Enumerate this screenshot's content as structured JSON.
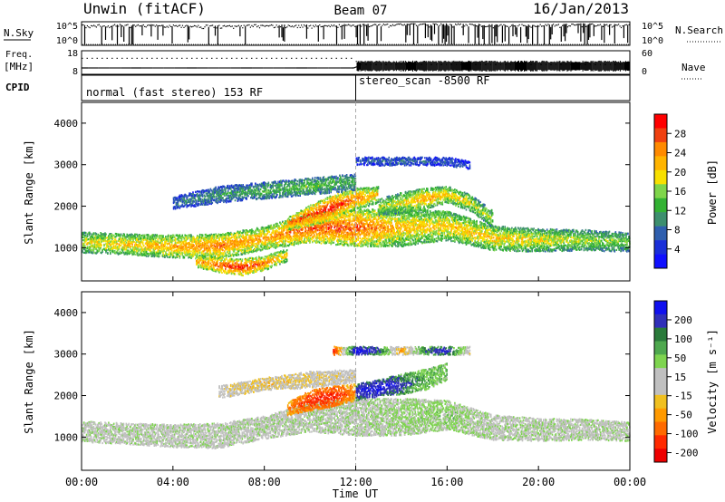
{
  "header": {
    "station": "Unwin (fitACF)",
    "beam": "Beam 07",
    "date": "16/Jan/2013"
  },
  "top_strip": {
    "left_label": "N.Sky",
    "left_ticks": [
      "10^5",
      "10^0"
    ],
    "right_ticks": [
      "10^5",
      "10^0"
    ],
    "right_label": "N.Search"
  },
  "freq_strip": {
    "left_label_1": "Freq.",
    "left_label_2": "[MHz]",
    "left_ticks": [
      "18",
      "8"
    ],
    "right_ticks": [
      "60",
      "0"
    ],
    "right_label": "Nave"
  },
  "cpid": {
    "label": "CPID",
    "mode_1": "normal (fast stereo) 153 RF",
    "mode_2": "stereo_scan -8500 RF",
    "mode_change_x": 12.0
  },
  "panels": {
    "ylabel": "Slant Range [km]",
    "xlabel": "Time UT"
  },
  "colorbars": {
    "power": {
      "title": "Power [dB]",
      "ticks": [
        "28",
        "24",
        "20",
        "16",
        "12",
        "8",
        "4"
      ],
      "colors": [
        "#ff0000",
        "#f04010",
        "#ff8a00",
        "#ffb400",
        "#f8e000",
        "#7fd54a",
        "#33b233",
        "#3d8f6e",
        "#2f5fae",
        "#1a2fd8",
        "#1010ff"
      ]
    },
    "velocity": {
      "title": "Velocity [m s⁻¹]",
      "ticks": [
        "200",
        "100",
        "50",
        "15",
        "-15",
        "-50",
        "-100",
        "-200"
      ],
      "colors": [
        "#1010ee",
        "#3030b8",
        "#2a7a3a",
        "#4ea84e",
        "#7ed44f",
        "#c0c0c0",
        "#c0c0c0",
        "#f0c020",
        "#ff9a00",
        "#ff6a00",
        "#ff2a00",
        "#ee0000"
      ]
    }
  },
  "chart_data": [
    {
      "type": "line",
      "title": "N.Sky / N.Search",
      "x": [
        0,
        2,
        4,
        6,
        8,
        10,
        12,
        14,
        16,
        18,
        20,
        22,
        24
      ],
      "series": [
        {
          "name": "N.Sky",
          "values": [
            20000,
            20000,
            15000,
            15000,
            20000,
            15000,
            20000,
            30000,
            30000,
            20000,
            20000,
            30000,
            20000
          ]
        },
        {
          "name": "N.Search",
          "values": [
            1,
            1,
            1,
            1,
            1,
            1,
            1,
            1,
            1,
            1,
            1,
            1,
            1
          ]
        }
      ],
      "ylim": [
        1,
        100000
      ],
      "log_y": true
    },
    {
      "type": "line",
      "title": "Freq / Nave",
      "x": [
        0,
        4,
        8,
        11.9,
        12.1,
        16,
        20,
        24
      ],
      "series": [
        {
          "name": "Freq",
          "values": [
            10.7,
            10.7,
            10.7,
            10.7,
            11.5,
            11.5,
            11.5,
            11.5
          ]
        },
        {
          "name": "Nave",
          "values": [
            42,
            42,
            42,
            42,
            26,
            26,
            26,
            26
          ]
        }
      ],
      "ylim": [
        8,
        18
      ]
    },
    {
      "type": "heatmap",
      "title": "Power",
      "xlabel": "Time UT",
      "ylabel": "Slant Range [km]",
      "xlim": [
        0,
        24
      ],
      "ylim": [
        200,
        4500
      ],
      "x_ticks": [
        "00:00",
        "04:00",
        "08:00",
        "12:00",
        "16:00",
        "20:00",
        "00:00"
      ],
      "y_ticks": [
        "1000",
        "2000",
        "3000",
        "4000"
      ],
      "zlabel": "Power [dB]",
      "zlim": [
        0,
        30
      ],
      "scatter_bands": [
        {
          "x": [
            0,
            2,
            4,
            6,
            8,
            10,
            12,
            14,
            16,
            18,
            20,
            22,
            24
          ],
          "center": [
            1150,
            1100,
            1050,
            1050,
            1250,
            1500,
            1500,
            1500,
            1550,
            1250,
            1200,
            1200,
            1150
          ],
          "width": [
            500,
            500,
            550,
            600,
            550,
            700,
            900,
            900,
            700,
            600,
            550,
            500,
            450
          ],
          "power": [
            18,
            20,
            22,
            24,
            22,
            26,
            26,
            20,
            20,
            20,
            18,
            16,
            14
          ]
        },
        {
          "x": [
            5,
            6,
            7,
            8,
            9
          ],
          "center": [
            700,
            600,
            550,
            650,
            850
          ],
          "width": [
            300,
            350,
            400,
            350,
            300
          ],
          "power": [
            22,
            26,
            28,
            24,
            20
          ]
        },
        {
          "x": [
            9,
            10,
            11,
            12,
            13
          ],
          "center": [
            1600,
            1800,
            2000,
            2200,
            2300
          ],
          "width": [
            300,
            500,
            600,
            500,
            400
          ],
          "power": [
            24,
            27,
            28,
            24,
            20
          ]
        },
        {
          "x": [
            13,
            14,
            15,
            16,
            17,
            18
          ],
          "center": [
            2000,
            2100,
            2200,
            2300,
            2100,
            1700
          ],
          "width": [
            400,
            500,
            500,
            400,
            400,
            400
          ],
          "power": [
            16,
            18,
            22,
            20,
            18,
            16
          ]
        },
        {
          "x": [
            4,
            6,
            8,
            10,
            12
          ],
          "center": [
            2100,
            2300,
            2400,
            2500,
            2600
          ],
          "width": [
            300,
            400,
            400,
            400,
            400
          ],
          "power": [
            8,
            10,
            12,
            14,
            12
          ]
        },
        {
          "x": [
            12,
            14,
            16,
            17
          ],
          "center": [
            3100,
            3100,
            3100,
            3000
          ],
          "width": [
            200,
            200,
            200,
            200
          ],
          "power": [
            6,
            8,
            6,
            6
          ]
        }
      ]
    },
    {
      "type": "heatmap",
      "title": "Velocity",
      "xlabel": "Time UT",
      "ylabel": "Slant Range [km]",
      "xlim": [
        0,
        24
      ],
      "ylim": [
        200,
        4500
      ],
      "x_ticks": [
        "00:00",
        "04:00",
        "08:00",
        "12:00",
        "16:00",
        "20:00",
        "00:00"
      ],
      "y_ticks": [
        "1000",
        "2000",
        "3000",
        "4000"
      ],
      "zlabel": "Velocity [m s⁻¹]",
      "zlim": [
        -200,
        200
      ],
      "scatter_bands": [
        {
          "x": [
            0,
            2,
            4,
            6,
            8,
            10,
            12,
            14,
            16,
            18,
            20,
            22,
            24
          ],
          "center": [
            1150,
            1100,
            1050,
            1050,
            1250,
            1500,
            1500,
            1500,
            1550,
            1250,
            1200,
            1200,
            1150
          ],
          "width": [
            500,
            500,
            550,
            600,
            550,
            700,
            900,
            900,
            700,
            600,
            550,
            500,
            450
          ],
          "velocity": [
            0,
            0,
            0,
            -5,
            0,
            0,
            0,
            20,
            30,
            0,
            0,
            0,
            0
          ]
        },
        {
          "x": [
            9,
            10,
            11,
            12
          ],
          "center": [
            1700,
            1900,
            2000,
            2100
          ],
          "width": [
            300,
            500,
            500,
            400
          ],
          "velocity": [
            -120,
            -180,
            -200,
            -100
          ]
        },
        {
          "x": [
            12,
            13,
            14,
            15,
            16
          ],
          "center": [
            2100,
            2200,
            2300,
            2400,
            2600
          ],
          "width": [
            400,
            400,
            500,
            500,
            400
          ],
          "velocity": [
            150,
            180,
            120,
            60,
            40
          ]
        },
        {
          "x": [
            6,
            8,
            10,
            12
          ],
          "center": [
            2100,
            2300,
            2400,
            2500
          ],
          "width": [
            300,
            300,
            400,
            300
          ],
          "velocity": [
            -40,
            -60,
            -50,
            -30
          ]
        },
        {
          "x": [
            11,
            12,
            13,
            14,
            15,
            16,
            17
          ],
          "center": [
            3100,
            3100,
            3100,
            3100,
            3100,
            3100,
            3100
          ],
          "width": [
            200,
            200,
            200,
            200,
            200,
            200,
            200
          ],
          "velocity": [
            -200,
            200,
            120,
            -100,
            100,
            150,
            -50
          ]
        }
      ]
    }
  ]
}
